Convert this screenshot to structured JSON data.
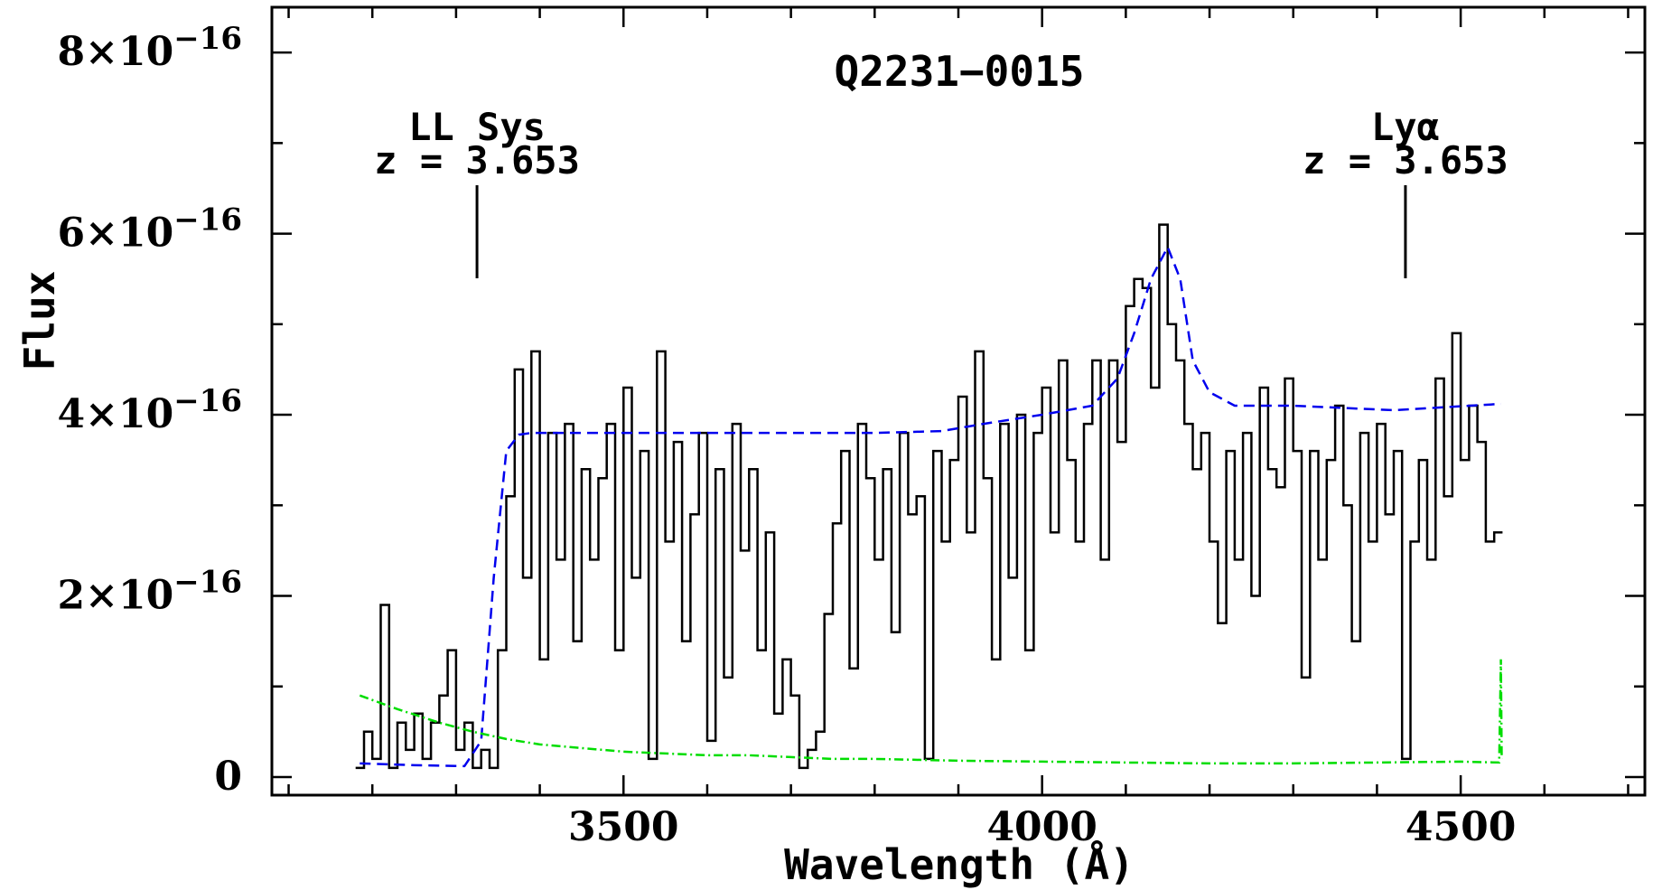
{
  "chart_data": {
    "type": "line",
    "title": "Q2231−0015",
    "xlabel": "Wavelength (Å)",
    "ylabel": "Flux",
    "xlim": [
      3080,
      4720
    ],
    "ylim": [
      -2e-17,
      8.5e-16
    ],
    "x_ticks": [
      3500,
      4000,
      4500
    ],
    "x_tick_labels": [
      "3500",
      "4000",
      "4500"
    ],
    "y_ticks": [
      0,
      2e-16,
      4e-16,
      6e-16,
      8e-16
    ],
    "y_tick_labels": [
      {
        "mant": "0",
        "exp": ""
      },
      {
        "mant": "2×10",
        "exp": "−16"
      },
      {
        "mant": "4×10",
        "exp": "−16"
      },
      {
        "mant": "6×10",
        "exp": "−16"
      },
      {
        "mant": "8×10",
        "exp": "−16"
      }
    ],
    "annotations": [
      {
        "line1": "LL Sys",
        "line2": "z = 3.653",
        "x": 3325
      },
      {
        "line1": "Lyα",
        "line2": "z = 3.653",
        "x": 4434
      }
    ],
    "series": [
      {
        "style": "histogram",
        "color": "#000000",
        "x": [
          3185,
          3195,
          3205,
          3215,
          3225,
          3235,
          3245,
          3255,
          3265,
          3275,
          3285,
          3295,
          3305,
          3315,
          3325,
          3335,
          3345,
          3355,
          3365,
          3375,
          3385,
          3395,
          3405,
          3415,
          3425,
          3435,
          3445,
          3455,
          3465,
          3475,
          3485,
          3495,
          3505,
          3515,
          3525,
          3535,
          3545,
          3555,
          3565,
          3575,
          3585,
          3595,
          3605,
          3615,
          3625,
          3635,
          3645,
          3655,
          3665,
          3675,
          3685,
          3695,
          3705,
          3715,
          3725,
          3735,
          3745,
          3755,
          3765,
          3775,
          3785,
          3795,
          3805,
          3815,
          3825,
          3835,
          3845,
          3855,
          3865,
          3875,
          3885,
          3895,
          3905,
          3915,
          3925,
          3935,
          3945,
          3955,
          3965,
          3975,
          3985,
          3995,
          4005,
          4015,
          4025,
          4035,
          4045,
          4055,
          4065,
          4075,
          4085,
          4095,
          4105,
          4115,
          4125,
          4135,
          4145,
          4155,
          4165,
          4175,
          4185,
          4195,
          4205,
          4215,
          4225,
          4235,
          4245,
          4255,
          4265,
          4275,
          4285,
          4295,
          4305,
          4315,
          4325,
          4335,
          4345,
          4355,
          4365,
          4375,
          4385,
          4395,
          4405,
          4415,
          4425,
          4435,
          4445,
          4455,
          4465,
          4475,
          4485,
          4495,
          4505,
          4515,
          4525,
          4535,
          4545
        ],
        "y": [
          1e-17,
          5e-17,
          2e-17,
          1.9e-16,
          1e-17,
          6e-17,
          3e-17,
          7e-17,
          2e-17,
          6e-17,
          9e-17,
          1.4e-16,
          3e-17,
          6e-17,
          1e-17,
          3e-17,
          1e-17,
          1.4e-16,
          3.1e-16,
          4.5e-16,
          2.2e-16,
          4.7e-16,
          1.3e-16,
          3.8e-16,
          2.4e-16,
          3.9e-16,
          1.5e-16,
          3.4e-16,
          2.4e-16,
          3.3e-16,
          3.9e-16,
          1.4e-16,
          4.3e-16,
          2.2e-16,
          3.6e-16,
          2e-17,
          4.7e-16,
          2.6e-16,
          3.7e-16,
          1.5e-16,
          2.9e-16,
          3.8e-16,
          4e-17,
          3.4e-16,
          1.1e-16,
          3.9e-16,
          2.5e-16,
          3.4e-16,
          1.4e-16,
          2.7e-16,
          7e-17,
          1.3e-16,
          9e-17,
          1e-17,
          3e-17,
          5e-17,
          1.8e-16,
          2.8e-16,
          3.6e-16,
          1.2e-16,
          3.9e-16,
          3.3e-16,
          2.4e-16,
          3.4e-16,
          1.6e-16,
          3.8e-16,
          2.9e-16,
          3.1e-16,
          2e-17,
          3.6e-16,
          2.6e-16,
          3.5e-16,
          4.2e-16,
          2.7e-16,
          4.7e-16,
          3.3e-16,
          1.3e-16,
          3.9e-16,
          2.2e-16,
          4e-16,
          1.4e-16,
          3.8e-16,
          4.3e-16,
          2.7e-16,
          4.6e-16,
          3.5e-16,
          2.6e-16,
          3.9e-16,
          4.6e-16,
          2.4e-16,
          4.6e-16,
          3.7e-16,
          5.2e-16,
          5.5e-16,
          5.4e-16,
          4.3e-16,
          6.1e-16,
          5e-16,
          4.6e-16,
          3.9e-16,
          3.4e-16,
          3.8e-16,
          2.6e-16,
          1.7e-16,
          3.6e-16,
          2.4e-16,
          3.8e-16,
          2e-16,
          4.3e-16,
          3.4e-16,
          3.2e-16,
          4.4e-16,
          3.6e-16,
          1.1e-16,
          3.6e-16,
          2.4e-16,
          3.5e-16,
          4.1e-16,
          3e-16,
          1.5e-16,
          3.8e-16,
          2.6e-16,
          3.9e-16,
          2.9e-16,
          3.6e-16,
          2e-17,
          2.6e-16,
          3.5e-16,
          2.4e-16,
          4.4e-16,
          3.1e-16,
          4.9e-16,
          3.5e-16,
          4.1e-16,
          3.7e-16,
          2.6e-16,
          2.7e-16
        ]
      },
      {
        "style": "dashed",
        "color": "#0000ee",
        "x": [
          3185,
          3250,
          3310,
          3330,
          3345,
          3360,
          3375,
          3390,
          3450,
          3600,
          3800,
          3880,
          3930,
          4000,
          4060,
          4090,
          4110,
          4130,
          4150,
          4165,
          4180,
          4200,
          4230,
          4300,
          4420,
          4548
        ],
        "y": [
          1.5e-17,
          1.3e-17,
          1.2e-17,
          4e-17,
          2.2e-16,
          3.6e-16,
          3.78e-16,
          3.8e-16,
          3.8e-16,
          3.8e-16,
          3.8e-16,
          3.82e-16,
          3.9e-16,
          4e-16,
          4.1e-16,
          4.4e-16,
          4.9e-16,
          5.5e-16,
          5.85e-16,
          5.5e-16,
          4.6e-16,
          4.25e-16,
          4.1e-16,
          4.1e-16,
          4.05e-16,
          4.12e-16
        ]
      },
      {
        "style": "dash-dot",
        "color": "#00dd00",
        "x": [
          3185,
          3230,
          3280,
          3320,
          3360,
          3400,
          3450,
          3500,
          3550,
          3600,
          3650,
          3700,
          3750,
          3800,
          3900,
          4000,
          4100,
          4200,
          4300,
          4400,
          4500,
          4546,
          4548,
          4549
        ],
        "y": [
          9e-17,
          7.5e-17,
          6e-17,
          5e-17,
          4.2e-17,
          3.6e-17,
          3.2e-17,
          2.8e-17,
          2.6e-17,
          2.4e-17,
          2.4e-17,
          2.2e-17,
          2e-17,
          2e-17,
          1.8e-17,
          1.7e-17,
          1.6e-17,
          1.5e-17,
          1.5e-17,
          1.6e-17,
          1.7e-17,
          1.6e-17,
          1.3e-16,
          2e-17
        ]
      }
    ]
  }
}
